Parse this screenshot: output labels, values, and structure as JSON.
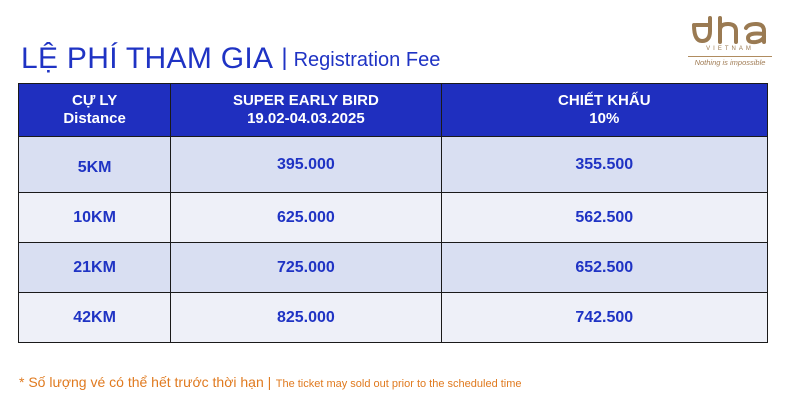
{
  "title": {
    "vietnamese": "LỆ PHÍ THAM GIA",
    "separator": "|",
    "english": "Registration Fee"
  },
  "logo": {
    "brand": "dha",
    "sub": "VIETNAM",
    "tagline": "Nothing is impossible",
    "color": "#9a7a52"
  },
  "table": {
    "headers": [
      {
        "line1": "CỰ LY",
        "line2": "Distance"
      },
      {
        "line1": "SUPER EARLY BIRD",
        "line2": "19.02-04.03.2025"
      },
      {
        "line1": "CHIẾT KHẤU",
        "line2": "10%"
      }
    ],
    "rows": [
      {
        "distance": "5KM",
        "price": "395.000",
        "discount": "355.500"
      },
      {
        "distance": "10KM",
        "price": "625.000",
        "discount": "562.500"
      },
      {
        "distance": "21KM",
        "price": "725.000",
        "discount": "652.500"
      },
      {
        "distance": "42KM",
        "price": "825.000",
        "discount": "742.500"
      }
    ]
  },
  "note": {
    "vietnamese": "* Số lượng vé có thể hết trước thời hạn |",
    "english": "The ticket may sold out prior to the scheduled time"
  },
  "colors": {
    "primary": "#1f33c4",
    "header_bg": "#1f2fbf",
    "row_alt_1": "#d9dff2",
    "row_alt_2": "#eef0f8",
    "note": "#e07a1f",
    "logo_gold": "#9a7a52"
  }
}
